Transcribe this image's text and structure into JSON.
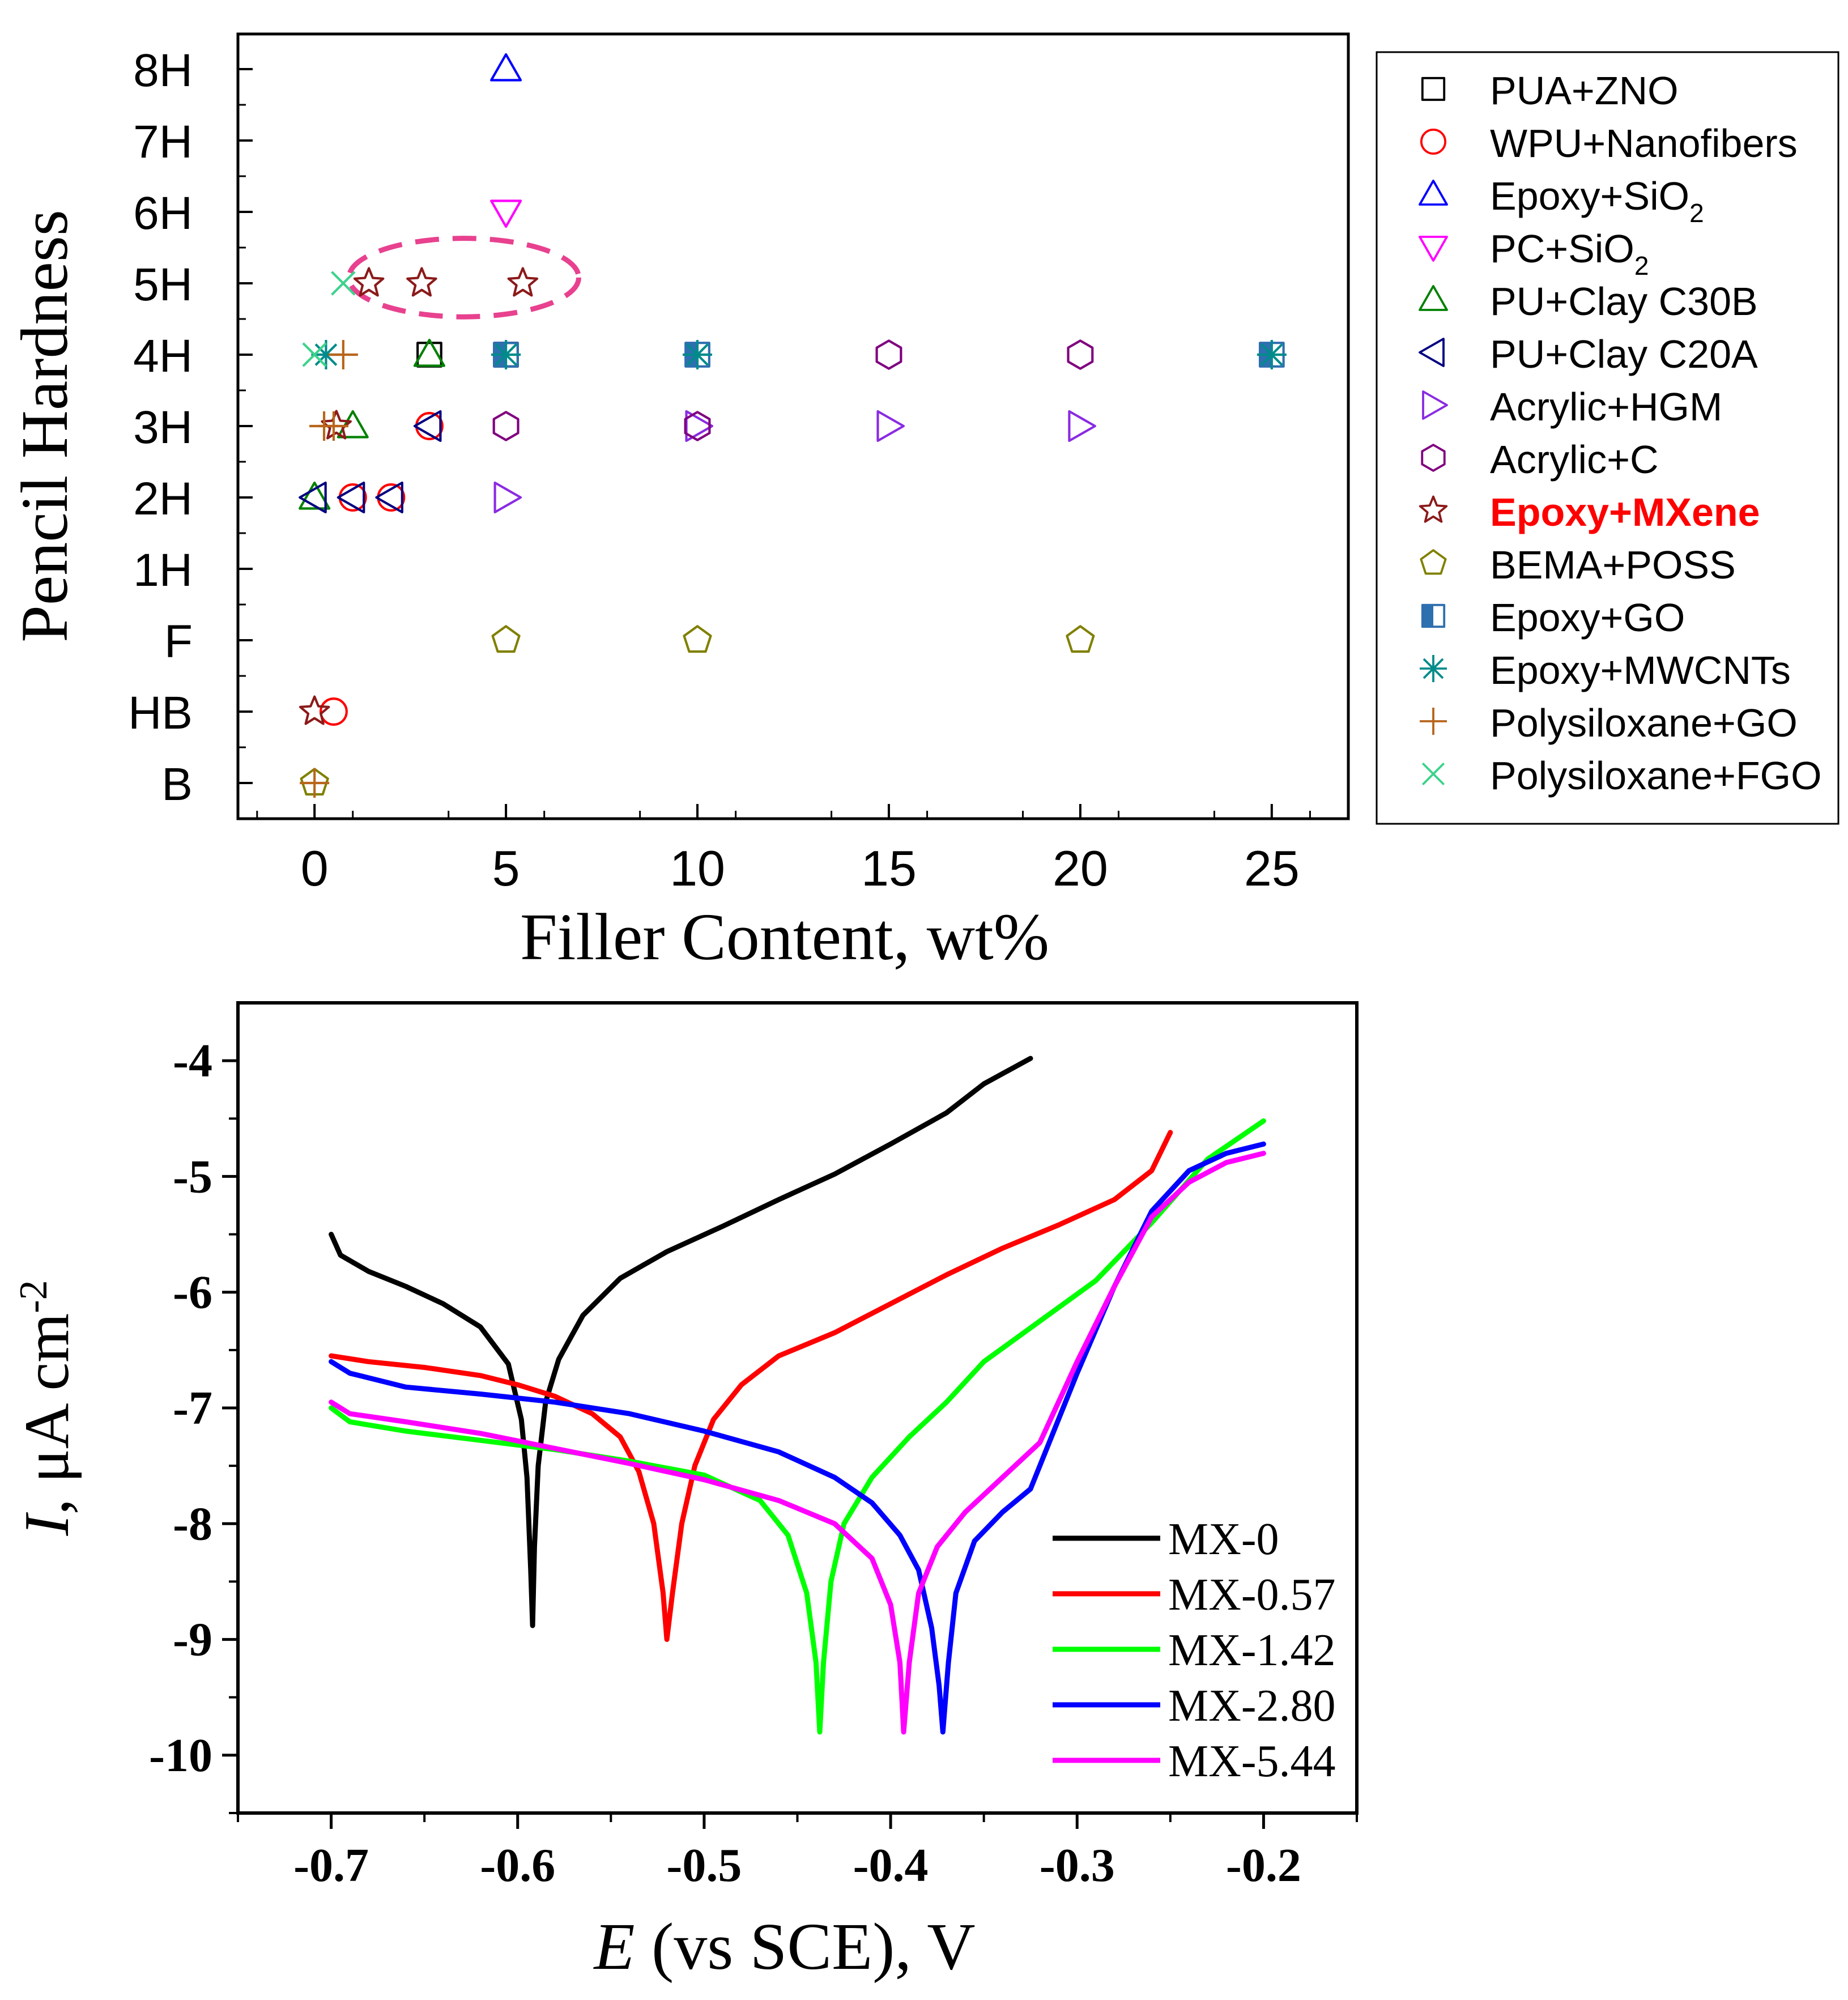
{
  "chart_data": [
    {
      "type": "scatter",
      "ylabel": "Pencil Hardness",
      "xlabel": "Filler Content, wt%",
      "xlim": [
        -2,
        27
      ],
      "x_ticks": [
        0,
        5,
        10,
        15,
        20,
        25
      ],
      "y_categories": [
        "B",
        "HB",
        "F",
        "1H",
        "2H",
        "3H",
        "4H",
        "5H",
        "6H",
        "7H",
        "8H"
      ],
      "highlight": {
        "shape": "dashed-ellipse",
        "color": "#e8418f",
        "center_x": 3.9,
        "center_level": 7.08,
        "half_width_x": 3.0,
        "half_height_levels": 0.55
      },
      "series": [
        {
          "name": "PUA+ZNO",
          "marker": "square",
          "color": "#000000",
          "points": [
            [
              3,
              6
            ],
            [
              5,
              6
            ]
          ]
        },
        {
          "name": "WPU+Nanofibers",
          "marker": "circle",
          "color": "#ff0000",
          "points": [
            [
              0.5,
              1
            ],
            [
              1,
              4
            ],
            [
              2,
              4
            ],
            [
              3,
              5
            ]
          ]
        },
        {
          "name": "Epoxy+SiO",
          "sub": "2",
          "marker": "triangle-up",
          "color": "#0000ff",
          "points": [
            [
              5,
              10
            ]
          ]
        },
        {
          "name": "PC+SiO",
          "sub": "2",
          "marker": "triangle-down",
          "color": "#ff00ff",
          "points": [
            [
              5,
              8
            ]
          ]
        },
        {
          "name": "PU+Clay C30B",
          "marker": "triangle-up",
          "color": "#008000",
          "points": [
            [
              0,
              4
            ],
            [
              1,
              5
            ],
            [
              3,
              6
            ]
          ]
        },
        {
          "name": "PU+Clay C20A",
          "marker": "triangle-left",
          "color": "#000080",
          "points": [
            [
              0,
              4
            ],
            [
              1,
              4
            ],
            [
              2,
              4
            ],
            [
              3,
              5
            ]
          ]
        },
        {
          "name": "Acrylic+HGM",
          "marker": "triangle-right",
          "color": "#8a2be2",
          "points": [
            [
              5,
              4
            ],
            [
              10,
              5
            ],
            [
              15,
              5
            ],
            [
              20,
              5
            ]
          ]
        },
        {
          "name": "Acrylic+C",
          "marker": "hexagon",
          "color": "#800080",
          "points": [
            [
              5,
              5
            ],
            [
              10,
              5
            ],
            [
              15,
              6
            ],
            [
              20,
              6
            ]
          ]
        },
        {
          "name": "Epoxy+MXene",
          "marker": "star",
          "color": "#8b1a1a",
          "bold": true,
          "label_color": "#ff0000",
          "points": [
            [
              0,
              1
            ],
            [
              0.57,
              5
            ],
            [
              1.42,
              7
            ],
            [
              2.8,
              7
            ],
            [
              5.44,
              7
            ]
          ]
        },
        {
          "name": "BEMA+POSS",
          "marker": "pentagon",
          "color": "#808000",
          "points": [
            [
              0,
              0
            ],
            [
              5,
              2
            ],
            [
              10,
              2
            ],
            [
              20,
              2
            ]
          ]
        },
        {
          "name": "Epoxy+GO",
          "marker": "half-square",
          "color": "#2e6fb0",
          "points": [
            [
              5,
              6
            ],
            [
              10,
              6
            ],
            [
              25,
              6
            ]
          ]
        },
        {
          "name": "Epoxy+MWCNTs",
          "marker": "asterisk",
          "color": "#008b8b",
          "points": [
            [
              0.3,
              6
            ],
            [
              5,
              6
            ],
            [
              10,
              6
            ],
            [
              25,
              6
            ]
          ]
        },
        {
          "name": "Polysiloxane+GO",
          "marker": "plus",
          "color": "#b8651b",
          "points": [
            [
              0,
              0
            ],
            [
              0.5,
              5
            ],
            [
              0.75,
              6
            ],
            [
              0.25,
              5
            ]
          ]
        },
        {
          "name": "Polysiloxane+FGO",
          "marker": "cross",
          "color": "#3cd38b",
          "points": [
            [
              0,
              6
            ],
            [
              0.75,
              7
            ]
          ]
        }
      ]
    },
    {
      "type": "line",
      "xlabel_italic": "E",
      "xlabel_rest": " (vs SCE), V",
      "ylabel_italic": "I",
      "ylabel_rest": ", μA cm",
      "ylabel_sup": "-2",
      "xlim": [
        -0.75,
        -0.15
      ],
      "ylim": [
        -10.5,
        -3.5
      ],
      "x_ticks": [
        -0.7,
        -0.6,
        -0.5,
        -0.4,
        -0.3,
        -0.2
      ],
      "y_ticks": [
        -4,
        -5,
        -6,
        -7,
        -8,
        -9,
        -10
      ],
      "series": [
        {
          "name": "MX-0",
          "color": "#000000",
          "points": [
            [
              -0.7,
              -5.5
            ],
            [
              -0.695,
              -5.68
            ],
            [
              -0.68,
              -5.82
            ],
            [
              -0.66,
              -5.95
            ],
            [
              -0.64,
              -6.1
            ],
            [
              -0.62,
              -6.3
            ],
            [
              -0.605,
              -6.62
            ],
            [
              -0.598,
              -7.1
            ],
            [
              -0.595,
              -7.6
            ],
            [
              -0.593,
              -8.4
            ],
            [
              -0.592,
              -8.88
            ],
            [
              -0.591,
              -8.2
            ],
            [
              -0.589,
              -7.5
            ],
            [
              -0.585,
              -6.95
            ],
            [
              -0.578,
              -6.58
            ],
            [
              -0.565,
              -6.2
            ],
            [
              -0.545,
              -5.88
            ],
            [
              -0.52,
              -5.65
            ],
            [
              -0.49,
              -5.43
            ],
            [
              -0.46,
              -5.2
            ],
            [
              -0.43,
              -4.98
            ],
            [
              -0.4,
              -4.72
            ],
            [
              -0.37,
              -4.45
            ],
            [
              -0.35,
              -4.2
            ],
            [
              -0.325,
              -3.98
            ]
          ]
        },
        {
          "name": "MX-0.57",
          "color": "#ff0000",
          "points": [
            [
              -0.7,
              -6.55
            ],
            [
              -0.68,
              -6.6
            ],
            [
              -0.65,
              -6.65
            ],
            [
              -0.62,
              -6.72
            ],
            [
              -0.6,
              -6.8
            ],
            [
              -0.58,
              -6.9
            ],
            [
              -0.56,
              -7.05
            ],
            [
              -0.545,
              -7.25
            ],
            [
              -0.535,
              -7.55
            ],
            [
              -0.527,
              -8.0
            ],
            [
              -0.522,
              -8.6
            ],
            [
              -0.52,
              -9.0
            ],
            [
              -0.517,
              -8.6
            ],
            [
              -0.512,
              -8.0
            ],
            [
              -0.505,
              -7.5
            ],
            [
              -0.495,
              -7.1
            ],
            [
              -0.48,
              -6.8
            ],
            [
              -0.46,
              -6.55
            ],
            [
              -0.43,
              -6.35
            ],
            [
              -0.4,
              -6.1
            ],
            [
              -0.37,
              -5.85
            ],
            [
              -0.34,
              -5.62
            ],
            [
              -0.31,
              -5.42
            ],
            [
              -0.28,
              -5.2
            ],
            [
              -0.26,
              -4.95
            ],
            [
              -0.25,
              -4.62
            ]
          ]
        },
        {
          "name": "MX-1.42",
          "color": "#00ff00",
          "points": [
            [
              -0.7,
              -7.0
            ],
            [
              -0.69,
              -7.12
            ],
            [
              -0.66,
              -7.2
            ],
            [
              -0.62,
              -7.28
            ],
            [
              -0.58,
              -7.36
            ],
            [
              -0.54,
              -7.46
            ],
            [
              -0.5,
              -7.58
            ],
            [
              -0.47,
              -7.8
            ],
            [
              -0.455,
              -8.1
            ],
            [
              -0.445,
              -8.6
            ],
            [
              -0.44,
              -9.2
            ],
            [
              -0.438,
              -9.8
            ],
            [
              -0.436,
              -9.2
            ],
            [
              -0.432,
              -8.5
            ],
            [
              -0.425,
              -8.0
            ],
            [
              -0.41,
              -7.6
            ],
            [
              -0.39,
              -7.25
            ],
            [
              -0.37,
              -6.95
            ],
            [
              -0.35,
              -6.6
            ],
            [
              -0.32,
              -6.25
            ],
            [
              -0.29,
              -5.9
            ],
            [
              -0.26,
              -5.4
            ],
            [
              -0.23,
              -4.85
            ],
            [
              -0.2,
              -4.52
            ]
          ]
        },
        {
          "name": "MX-2.80",
          "color": "#0000ff",
          "points": [
            [
              -0.7,
              -6.6
            ],
            [
              -0.69,
              -6.7
            ],
            [
              -0.66,
              -6.82
            ],
            [
              -0.62,
              -6.88
            ],
            [
              -0.58,
              -6.95
            ],
            [
              -0.54,
              -7.05
            ],
            [
              -0.5,
              -7.2
            ],
            [
              -0.46,
              -7.38
            ],
            [
              -0.43,
              -7.6
            ],
            [
              -0.41,
              -7.82
            ],
            [
              -0.395,
              -8.1
            ],
            [
              -0.385,
              -8.4
            ],
            [
              -0.378,
              -8.9
            ],
            [
              -0.374,
              -9.4
            ],
            [
              -0.372,
              -9.8
            ],
            [
              -0.369,
              -9.2
            ],
            [
              -0.365,
              -8.6
            ],
            [
              -0.355,
              -8.15
            ],
            [
              -0.34,
              -7.9
            ],
            [
              -0.325,
              -7.7
            ],
            [
              -0.315,
              -7.3
            ],
            [
              -0.3,
              -6.7
            ],
            [
              -0.28,
              -5.95
            ],
            [
              -0.26,
              -5.3
            ],
            [
              -0.24,
              -4.95
            ],
            [
              -0.22,
              -4.8
            ],
            [
              -0.2,
              -4.72
            ]
          ]
        },
        {
          "name": "MX-5.44",
          "color": "#ff00ff",
          "points": [
            [
              -0.7,
              -6.95
            ],
            [
              -0.69,
              -7.05
            ],
            [
              -0.66,
              -7.12
            ],
            [
              -0.62,
              -7.22
            ],
            [
              -0.58,
              -7.35
            ],
            [
              -0.54,
              -7.48
            ],
            [
              -0.5,
              -7.62
            ],
            [
              -0.46,
              -7.8
            ],
            [
              -0.43,
              -8.0
            ],
            [
              -0.41,
              -8.3
            ],
            [
              -0.4,
              -8.7
            ],
            [
              -0.395,
              -9.2
            ],
            [
              -0.393,
              -9.8
            ],
            [
              -0.39,
              -9.2
            ],
            [
              -0.385,
              -8.6
            ],
            [
              -0.375,
              -8.2
            ],
            [
              -0.36,
              -7.9
            ],
            [
              -0.34,
              -7.6
            ],
            [
              -0.32,
              -7.3
            ],
            [
              -0.3,
              -6.6
            ],
            [
              -0.28,
              -5.95
            ],
            [
              -0.26,
              -5.35
            ],
            [
              -0.24,
              -5.05
            ],
            [
              -0.22,
              -4.88
            ],
            [
              -0.2,
              -4.8
            ]
          ]
        }
      ]
    }
  ]
}
